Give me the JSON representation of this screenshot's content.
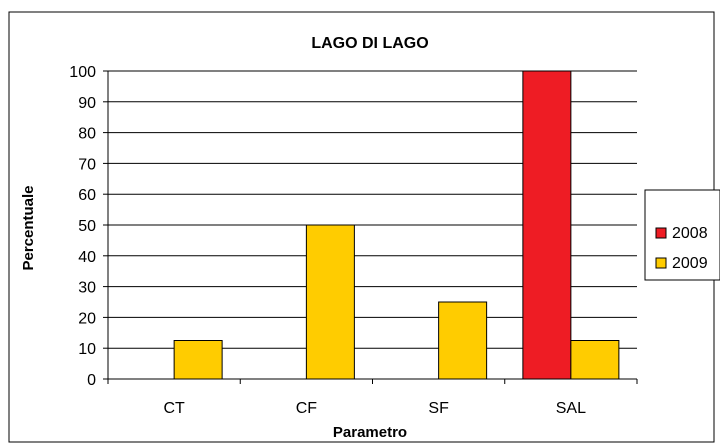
{
  "chart_data": {
    "type": "bar",
    "title": "LAGO DI LAGO",
    "xlabel": "Parametro",
    "ylabel": "Percentuale",
    "categories": [
      "CT",
      "CF",
      "SF",
      "SAL"
    ],
    "series": [
      {
        "name": "2008",
        "values": [
          0,
          0,
          0,
          100
        ],
        "color": "#ee1c24"
      },
      {
        "name": "2009",
        "values": [
          12.5,
          50,
          25,
          12.5
        ],
        "color": "#ffcc00"
      }
    ],
    "ylim": [
      0,
      100
    ],
    "yticks": [
      0,
      10,
      20,
      30,
      40,
      50,
      60,
      70,
      80,
      90,
      100
    ],
    "grid": true,
    "legend_position": "right"
  }
}
